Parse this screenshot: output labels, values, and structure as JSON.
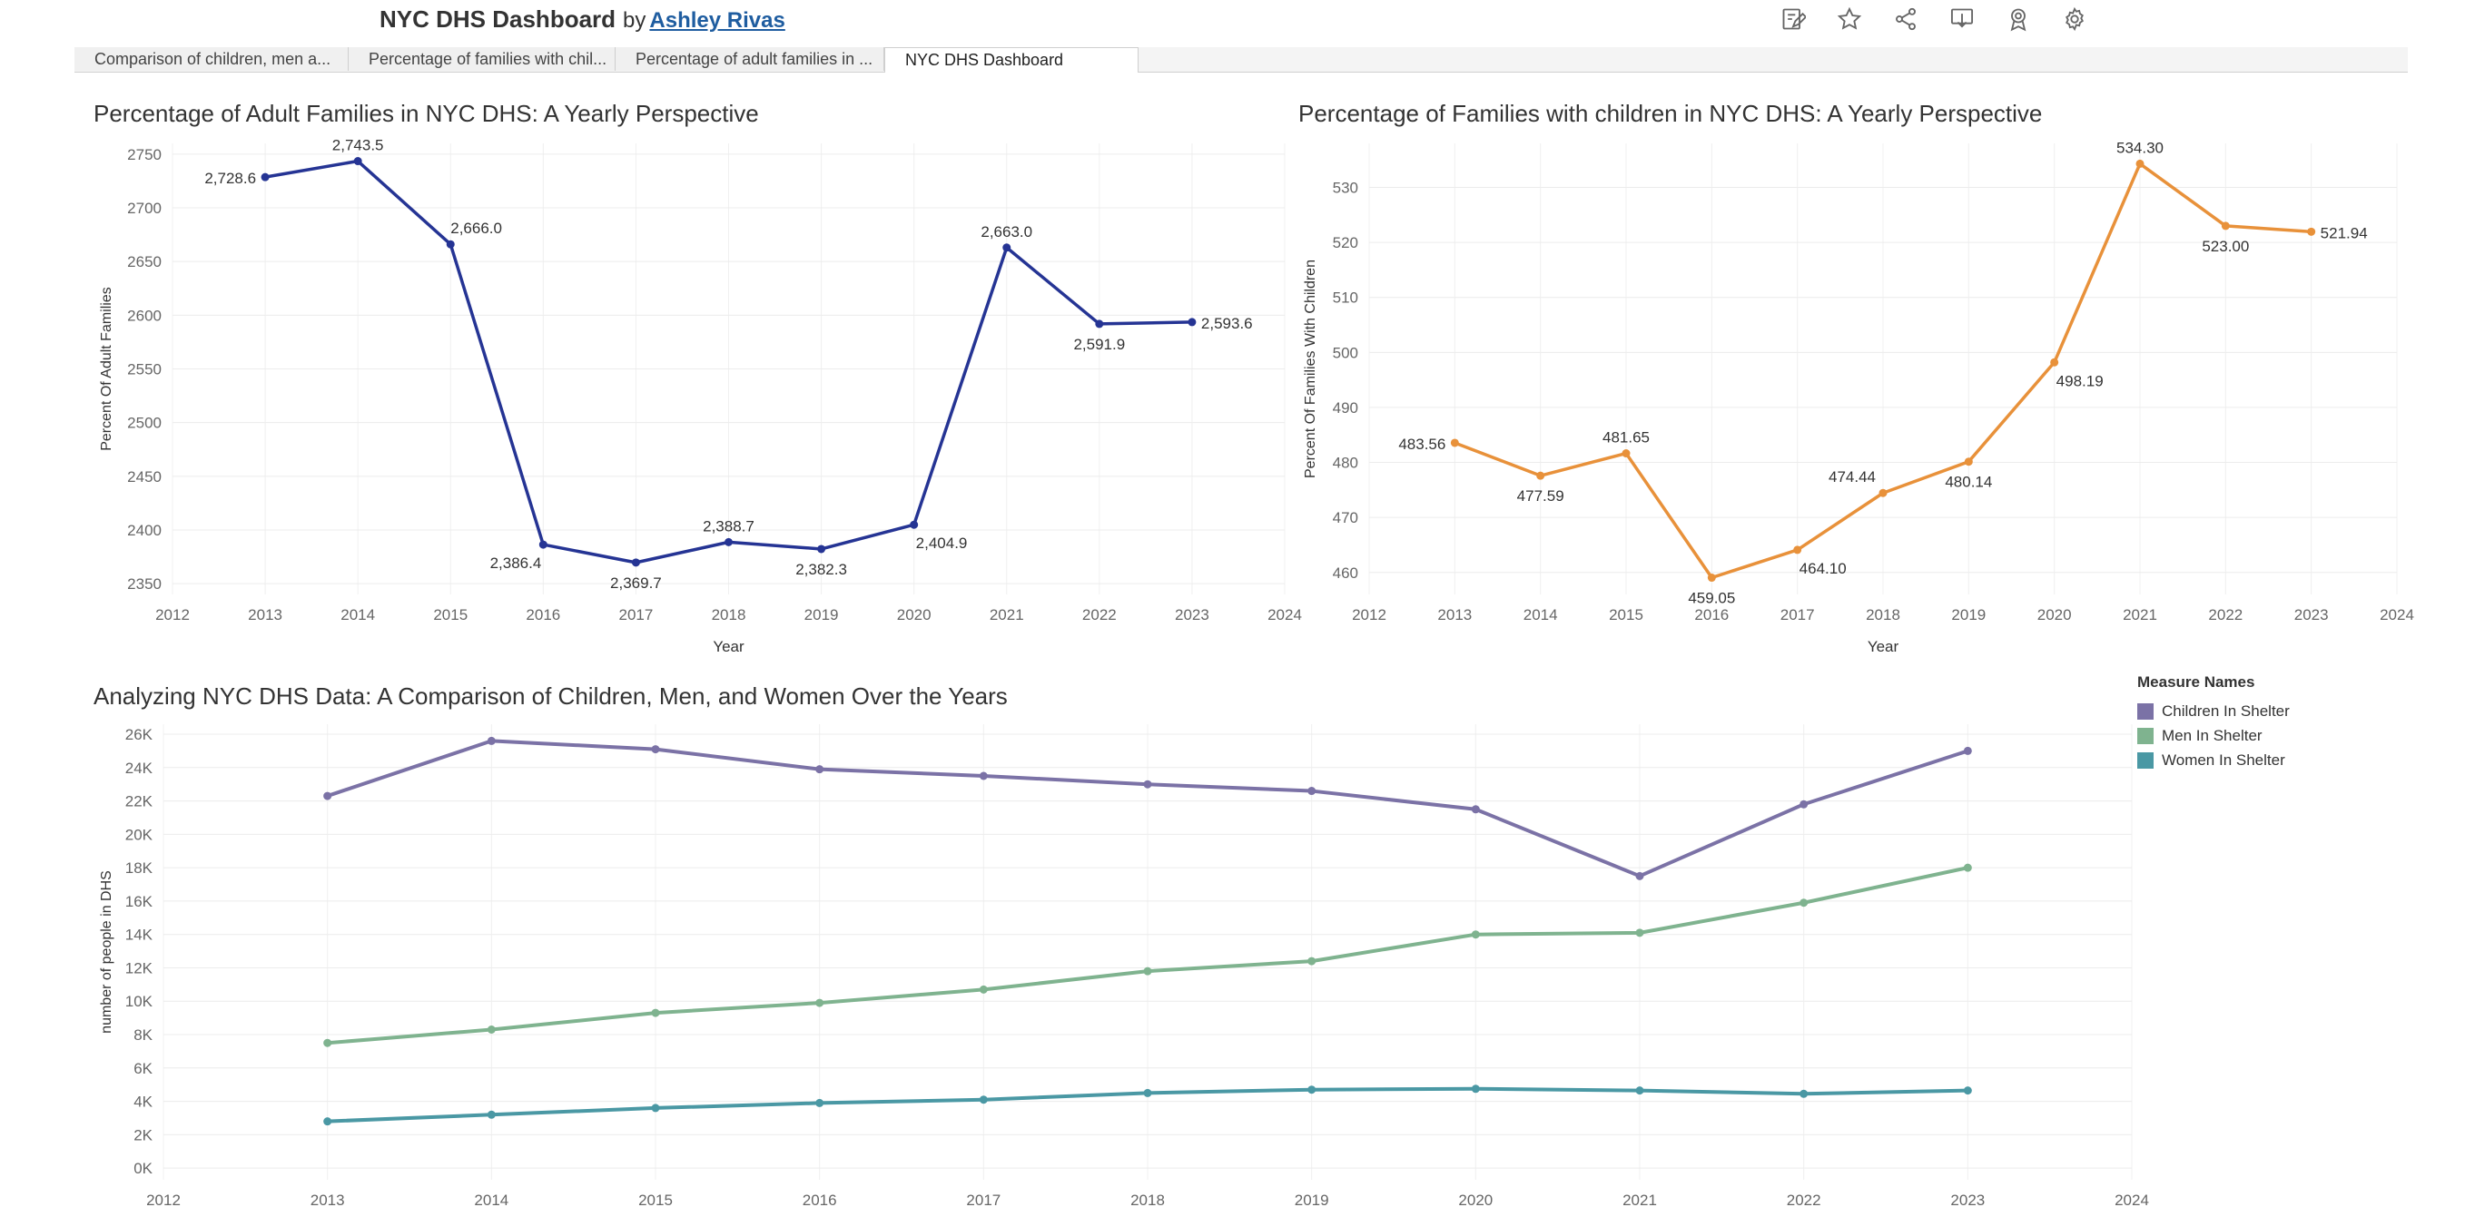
{
  "header": {
    "title": "NYC DHS Dashboard",
    "by": "by",
    "author": "Ashley Rivas"
  },
  "toolbar": [
    "edit-icon",
    "star-icon",
    "share-icon",
    "download-icon",
    "badge-icon",
    "gear-icon"
  ],
  "tabs": [
    {
      "label": "Comparison of children, men a..."
    },
    {
      "label": "Percentage of families with chil..."
    },
    {
      "label": "Percentage of adult families in ..."
    },
    {
      "label": "NYC DHS Dashboard"
    }
  ],
  "colors": {
    "adult": "#253494",
    "children_fam": "#e8913a",
    "children": "#7b72a6",
    "men": "#7fb38f",
    "women": "#4a98a4"
  },
  "chart_data": [
    {
      "type": "line",
      "title": "Percentage of Adult Families in NYC DHS: A Yearly Perspective",
      "xlabel": "Year",
      "ylabel": "Percent Of Adult Families",
      "x": [
        2013,
        2014,
        2015,
        2016,
        2017,
        2018,
        2019,
        2020,
        2021,
        2022,
        2023
      ],
      "values": [
        2728.6,
        2743.5,
        2666.0,
        2386.4,
        2369.7,
        2388.7,
        2382.3,
        2404.9,
        2663.0,
        2591.9,
        2593.6
      ],
      "labels": [
        "2,728.6",
        "2,743.5",
        "2,666.0",
        "2,386.4",
        "2,369.7",
        "2,388.7",
        "2,382.3",
        "2,404.9",
        "2,663.0",
        "2,591.9",
        "2,593.6"
      ],
      "xticks": [
        2012,
        2013,
        2014,
        2015,
        2016,
        2017,
        2018,
        2019,
        2020,
        2021,
        2022,
        2023,
        2024
      ],
      "yticks": [
        2350,
        2400,
        2450,
        2500,
        2550,
        2600,
        2650,
        2700,
        2750
      ],
      "ytick_labels": [
        "2350",
        "2400",
        "2450",
        "2500",
        "2550",
        "2600",
        "2650",
        "2700",
        "2750"
      ],
      "xlim": [
        2012,
        2024
      ],
      "ylim": [
        2340,
        2760
      ]
    },
    {
      "type": "line",
      "title": "Percentage of Families with children in NYC DHS: A Yearly Perspective",
      "xlabel": "Year",
      "ylabel": "Percent Of Families With Children",
      "x": [
        2013,
        2014,
        2015,
        2016,
        2017,
        2018,
        2019,
        2020,
        2021,
        2022,
        2023
      ],
      "values": [
        483.56,
        477.59,
        481.65,
        459.05,
        464.1,
        474.44,
        480.14,
        498.19,
        534.3,
        523.0,
        521.94
      ],
      "labels": [
        "483.56",
        "477.59",
        "481.65",
        "459.05",
        "464.10",
        "474.44",
        "480.14",
        "498.19",
        "534.30",
        "523.00",
        "521.94"
      ],
      "xticks": [
        2012,
        2013,
        2014,
        2015,
        2016,
        2017,
        2018,
        2019,
        2020,
        2021,
        2022,
        2023,
        2024
      ],
      "yticks": [
        460,
        470,
        480,
        490,
        500,
        510,
        520,
        530
      ],
      "ytick_labels": [
        "460",
        "470",
        "480",
        "490",
        "500",
        "510",
        "520",
        "530"
      ],
      "xlim": [
        2012,
        2024
      ],
      "ylim": [
        456,
        538
      ]
    },
    {
      "type": "line",
      "title": "Analyzing NYC DHS Data: A Comparison of Children, Men, and Women Over the Years",
      "xlabel": "",
      "ylabel": "number of people in DHS",
      "x": [
        2013,
        2014,
        2015,
        2016,
        2017,
        2018,
        2019,
        2020,
        2021,
        2022,
        2023
      ],
      "series": [
        {
          "name": "Children In Shelter",
          "values": [
            22300,
            25600,
            25100,
            23900,
            23500,
            23000,
            22600,
            21500,
            17500,
            21800,
            25000
          ]
        },
        {
          "name": "Men In Shelter",
          "values": [
            7500,
            8300,
            9300,
            9900,
            10700,
            11800,
            12400,
            14000,
            14100,
            15900,
            18000
          ]
        },
        {
          "name": "Women In Shelter",
          "values": [
            2800,
            3200,
            3600,
            3900,
            4100,
            4500,
            4700,
            4750,
            4650,
            4450,
            4650
          ]
        }
      ],
      "xticks": [
        2012,
        2013,
        2014,
        2015,
        2016,
        2017,
        2018,
        2019,
        2020,
        2021,
        2022,
        2023,
        2024
      ],
      "yticks": [
        0,
        2000,
        4000,
        6000,
        8000,
        10000,
        12000,
        14000,
        16000,
        18000,
        20000,
        22000,
        24000,
        26000
      ],
      "ytick_labels": [
        "0K",
        "2K",
        "4K",
        "6K",
        "8K",
        "10K",
        "12K",
        "14K",
        "16K",
        "18K",
        "20K",
        "22K",
        "24K",
        "26K"
      ],
      "xlim": [
        2012,
        2024
      ],
      "ylim": [
        -700,
        26600
      ],
      "legend": {
        "title": "Measure Names",
        "position": "right"
      }
    }
  ]
}
